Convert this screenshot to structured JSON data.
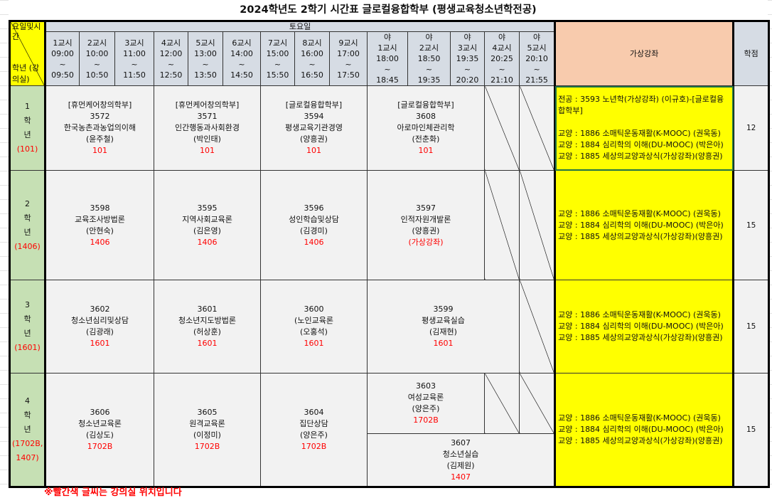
{
  "title": "2024학년도 2학기 시간표 글로컬융합학부 (평생교육청소년학전공)",
  "header": {
    "corner_top": "요일및시간",
    "corner_bottom": "학년 (강의실)",
    "day": "토요일",
    "virtual": "가상강좌",
    "credit": "학점",
    "periods": [
      {
        "label": "1교시",
        "start": "09:00",
        "sep": "~",
        "end": "09:50"
      },
      {
        "label": "2교시",
        "start": "10:00",
        "sep": "~",
        "end": "10:50"
      },
      {
        "label": "3교시",
        "start": "11:00",
        "sep": "~",
        "end": "11:50"
      },
      {
        "label": "4교시",
        "start": "12:00",
        "sep": "~",
        "end": "12:50"
      },
      {
        "label": "5교시",
        "start": "13:00",
        "sep": "~",
        "end": "13:50"
      },
      {
        "label": "6교시",
        "start": "14:00",
        "sep": "~",
        "end": "14:50"
      },
      {
        "label": "7교시",
        "start": "15:00",
        "sep": "~",
        "end": "15:50"
      },
      {
        "label": "8교시",
        "start": "16:00",
        "sep": "~",
        "end": "16:50"
      },
      {
        "label": "9교시",
        "start": "17:00",
        "sep": "~",
        "end": "17:50"
      },
      {
        "pre": "야",
        "label": "1교시",
        "start": "18:00",
        "sep": "~",
        "end": "18:45"
      },
      {
        "pre": "야",
        "label": "2교시",
        "start": "18:50",
        "sep": "~",
        "end": "19:35"
      },
      {
        "pre": "야",
        "label": "3교시",
        "start": "19:35",
        "sep": "~",
        "end": "20:20"
      },
      {
        "pre": "야",
        "label": "4교시",
        "start": "20:25",
        "sep": "~",
        "end": "21:10"
      },
      {
        "pre": "야",
        "label": "5교시",
        "start": "20:10",
        "sep": "~",
        "end": "21:55"
      }
    ]
  },
  "years": [
    {
      "num": "1",
      "hak": "학",
      "nyeon": "년",
      "room": "(101)",
      "credit": "12",
      "virtual": [
        "전공 : 3593 노년학(가상강좌) (이규호)-[글로컬융합학부]",
        "",
        "교양 : 1886 소매틱운동재활(K-MOOC) (권욱동)",
        "교양 : 1884 심리학의 이해(DU-MOOC) (박은아)",
        "교양 : 1885 세상의교양과상식(가상강좌)(양흥권)"
      ],
      "courses": [
        {
          "dept": "[휴먼케어창의학부]",
          "code": "3572",
          "name": "한국농촌과농업의이해",
          "prof": "(윤주철)",
          "room": "101"
        },
        {
          "dept": "[휴먼케어창의학부]",
          "code": "3571",
          "name": "인간행동과사회환경",
          "prof": "(박인태)",
          "room": "101"
        },
        {
          "dept": "[글로컬융합학부]",
          "code": "3594",
          "name": "평생교육기관경영",
          "prof": "(양흥권)",
          "room": "101"
        },
        {
          "dept": "[글로컬융합학부]",
          "code": "3608",
          "name": "아로마인체관리학",
          "prof": "(전춘화)",
          "room": "101"
        }
      ]
    },
    {
      "num": "2",
      "hak": "학",
      "nyeon": "년",
      "room": "(1406)",
      "credit": "15",
      "virtual": [
        "교양 : 1886 소매틱운동재활(K-MOOC) (권욱동)",
        "교양 : 1884 심리학의 이해(DU-MOOC) (박은아)",
        "교양 : 1885 세상의교양과상식(가상강좌)(양흥권)"
      ],
      "courses": [
        {
          "code": "3598",
          "name": "교육조사방법론",
          "prof": "(안현숙)",
          "room": "1406"
        },
        {
          "code": "3595",
          "name": "지역사회교육론",
          "prof": "(김은영)",
          "room": "1406"
        },
        {
          "code": "3596",
          "name": "성인학습및상담",
          "prof": "(김경미)",
          "room": "1406"
        },
        {
          "code": "3597",
          "name": "인적자원개발론",
          "prof": "(양흥권)",
          "room": "(가상강좌)"
        }
      ]
    },
    {
      "num": "3",
      "hak": "학",
      "nyeon": "년",
      "room": "(1601)",
      "credit": "15",
      "virtual": [
        "교양 : 1886 소매틱운동재활(K-MOOC) (권욱동)",
        "교양 : 1884 심리학의 이해(DU-MOOC) (박은아)",
        "교양 : 1885 세상의교양과상식(가상강좌)(양흥권)"
      ],
      "courses": [
        {
          "code": "3602",
          "name": "청소년심리및상담",
          "prof": "(김광래)",
          "room": "1601"
        },
        {
          "code": "3601",
          "name": "청소년지도방법론",
          "prof": "(허상훈)",
          "room": "1601"
        },
        {
          "code": "3600",
          "name": "(노인교육론",
          "prof": "(오홍석)",
          "room": "1601"
        },
        {
          "code": "3599",
          "name": "평생교육실습",
          "prof": "(김재현)",
          "room": "1601"
        }
      ]
    },
    {
      "num": "4",
      "hak": "학",
      "nyeon": "년",
      "room": "(1702B, 1407)",
      "credit": "15",
      "virtual": [
        "교양 : 1886 소매틱운동재활(K-MOOC) (권욱동)",
        "교양 : 1884 심리학의 이해(DU-MOOC) (박은아)",
        "교양 : 1885 세상의교양과상식(가상강좌)(양흥권)"
      ],
      "courses": [
        {
          "code": "3606",
          "name": "청소년교육론",
          "prof": "(김상도)",
          "room": "1702B"
        },
        {
          "code": "3605",
          "name": "원격교육론",
          "prof": "(이정미)",
          "room": "1702B"
        },
        {
          "code": "3604",
          "name": "집단상담",
          "prof": "(양은주)",
          "room": "1702B"
        },
        {
          "code": "3603",
          "name": "여성교육론",
          "prof": "(양은주)",
          "room": "1702B"
        },
        {
          "code": "3607",
          "name": "청소년실습",
          "prof": "(김제원)",
          "room": "1407"
        }
      ]
    }
  ],
  "note": "※빨간색 글씨는 강의실 위치입니다"
}
